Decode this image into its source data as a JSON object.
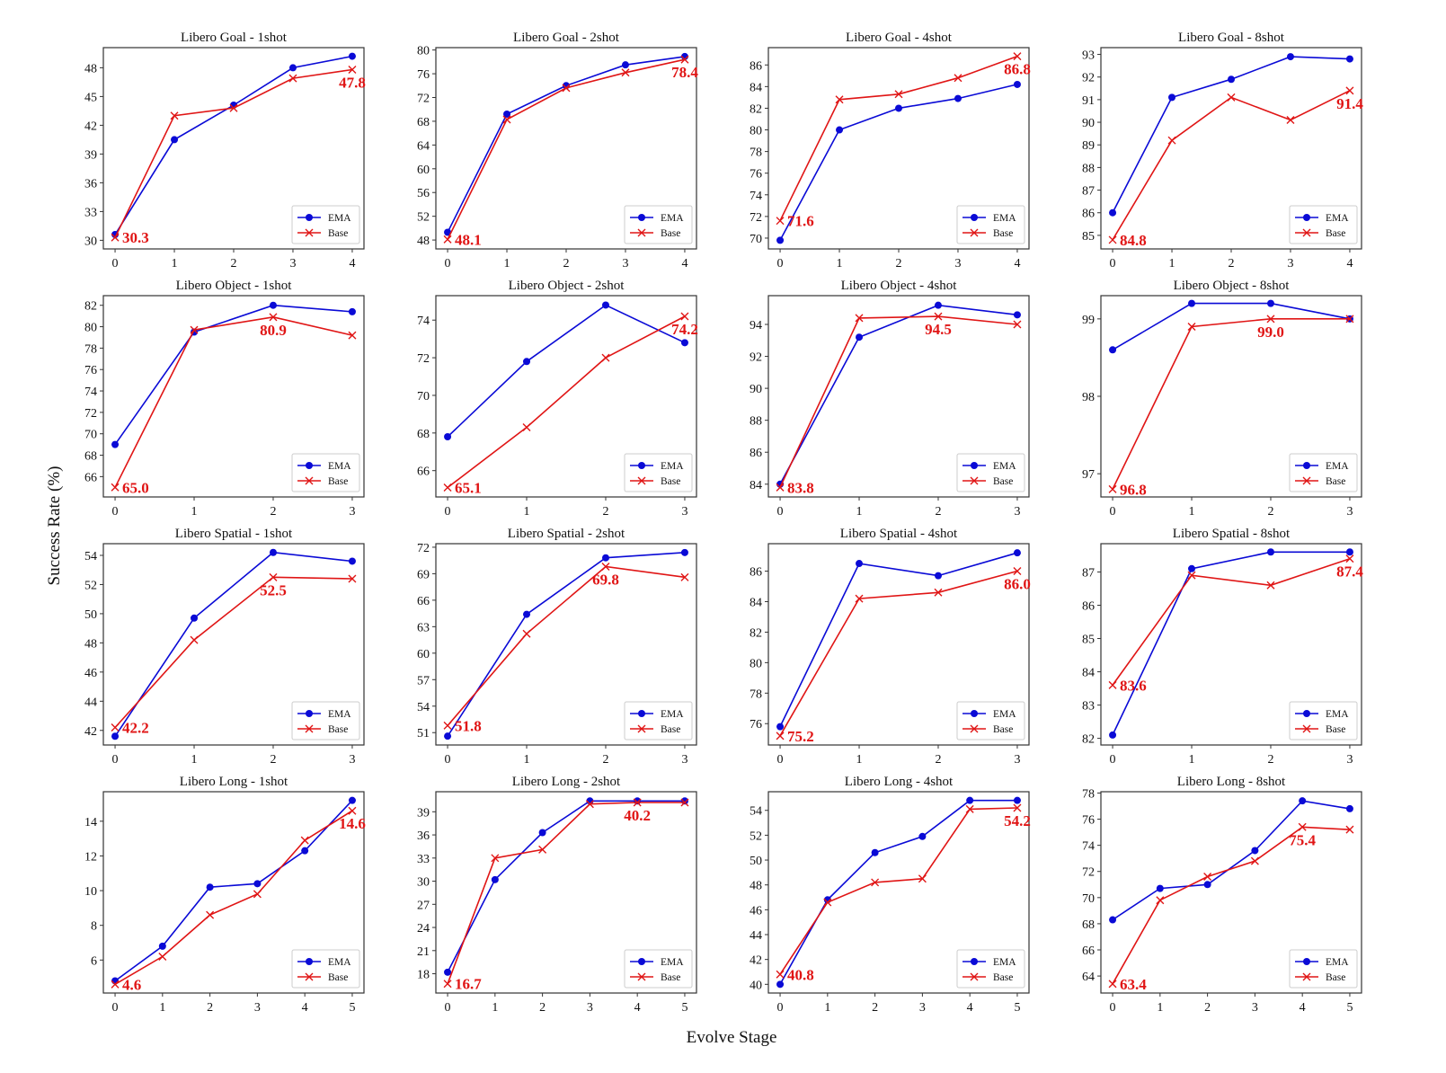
{
  "figure": {
    "xlabel": "Evolve Stage",
    "ylabel": "Success Rate (%)",
    "legend_labels": [
      "EMA",
      "Base"
    ],
    "colors": {
      "EMA": "#0a0ad6",
      "Base": "#e01515",
      "annotation": "#e01515",
      "frame": "#333333"
    }
  },
  "chart_data": [
    {
      "type": "line",
      "title": "Libero Goal - 1shot",
      "x": [
        0,
        1,
        2,
        3,
        4
      ],
      "yticks": [
        30,
        33,
        36,
        39,
        42,
        45,
        48
      ],
      "ylim": [
        29.1,
        50.1
      ],
      "series": [
        {
          "name": "EMA",
          "marker": "circle",
          "values": [
            30.6,
            40.5,
            44.1,
            48.0,
            49.2
          ]
        },
        {
          "name": "Base",
          "marker": "x",
          "values": [
            30.3,
            43.0,
            43.8,
            46.9,
            47.8
          ]
        }
      ],
      "annotations": [
        {
          "text": "30.3",
          "x": 0,
          "y": 30.3,
          "pos": "right"
        },
        {
          "text": "47.8",
          "x": 4,
          "y": 47.8,
          "pos": "below"
        }
      ],
      "legend": "lower-right",
      "xlabel": "",
      "ylabel": ""
    },
    {
      "type": "line",
      "title": "Libero Goal - 2shot",
      "x": [
        0,
        1,
        2,
        3,
        4
      ],
      "yticks": [
        48,
        52,
        56,
        60,
        64,
        68,
        72,
        76,
        80
      ],
      "ylim": [
        46.5,
        80.4
      ],
      "series": [
        {
          "name": "EMA",
          "marker": "circle",
          "values": [
            49.3,
            69.2,
            74.0,
            77.5,
            78.9
          ]
        },
        {
          "name": "Base",
          "marker": "x",
          "values": [
            48.1,
            68.3,
            73.6,
            76.2,
            78.4
          ]
        }
      ],
      "annotations": [
        {
          "text": "48.1",
          "x": 0,
          "y": 48.1,
          "pos": "right"
        },
        {
          "text": "78.4",
          "x": 4,
          "y": 78.4,
          "pos": "below"
        }
      ],
      "legend": "lower-right",
      "xlabel": "",
      "ylabel": ""
    },
    {
      "type": "line",
      "title": "Libero Goal - 4shot",
      "x": [
        0,
        1,
        2,
        3,
        4
      ],
      "yticks": [
        70,
        72,
        74,
        76,
        78,
        80,
        82,
        84,
        86
      ],
      "ylim": [
        69.0,
        87.6
      ],
      "series": [
        {
          "name": "EMA",
          "marker": "circle",
          "values": [
            69.8,
            80.0,
            82.0,
            82.9,
            84.2
          ]
        },
        {
          "name": "Base",
          "marker": "x",
          "values": [
            71.6,
            82.8,
            83.3,
            84.8,
            86.8
          ]
        }
      ],
      "annotations": [
        {
          "text": "71.6",
          "x": 0,
          "y": 71.6,
          "pos": "right"
        },
        {
          "text": "86.8",
          "x": 4,
          "y": 86.8,
          "pos": "below"
        }
      ],
      "legend": "lower-right",
      "xlabel": "",
      "ylabel": ""
    },
    {
      "type": "line",
      "title": "Libero Goal - 8shot",
      "x": [
        0,
        1,
        2,
        3,
        4
      ],
      "yticks": [
        85,
        86,
        87,
        88,
        89,
        90,
        91,
        92,
        93
      ],
      "ylim": [
        84.4,
        93.3
      ],
      "series": [
        {
          "name": "EMA",
          "marker": "circle",
          "values": [
            86.0,
            91.1,
            91.9,
            92.9,
            92.8
          ]
        },
        {
          "name": "Base",
          "marker": "x",
          "values": [
            84.8,
            89.2,
            91.1,
            90.1,
            91.4
          ]
        }
      ],
      "annotations": [
        {
          "text": "84.8",
          "x": 0,
          "y": 84.8,
          "pos": "right"
        },
        {
          "text": "91.4",
          "x": 4,
          "y": 91.4,
          "pos": "below"
        }
      ],
      "legend": "lower-right",
      "xlabel": "",
      "ylabel": ""
    },
    {
      "type": "line",
      "title": "Libero Object - 1shot",
      "x": [
        0,
        1,
        2,
        3
      ],
      "yticks": [
        66,
        68,
        70,
        72,
        74,
        76,
        78,
        80,
        82
      ],
      "ylim": [
        64.1,
        82.9
      ],
      "series": [
        {
          "name": "EMA",
          "marker": "circle",
          "values": [
            69.0,
            79.5,
            82.0,
            81.4
          ]
        },
        {
          "name": "Base",
          "marker": "x",
          "values": [
            65.0,
            79.7,
            80.9,
            79.2
          ]
        }
      ],
      "annotations": [
        {
          "text": "65.0",
          "x": 0,
          "y": 65.0,
          "pos": "right"
        },
        {
          "text": "80.9",
          "x": 2,
          "y": 80.9,
          "pos": "below"
        }
      ],
      "legend": "lower-right",
      "xlabel": "",
      "ylabel": ""
    },
    {
      "type": "line",
      "title": "Libero Object - 2shot",
      "x": [
        0,
        1,
        2,
        3
      ],
      "yticks": [
        66,
        68,
        70,
        72,
        74
      ],
      "ylim": [
        64.6,
        75.3
      ],
      "series": [
        {
          "name": "EMA",
          "marker": "circle",
          "values": [
            67.8,
            71.8,
            74.8,
            72.8
          ]
        },
        {
          "name": "Base",
          "marker": "x",
          "values": [
            65.1,
            68.3,
            72.0,
            74.2
          ]
        }
      ],
      "annotations": [
        {
          "text": "65.1",
          "x": 0,
          "y": 65.1,
          "pos": "right"
        },
        {
          "text": "74.2",
          "x": 3,
          "y": 74.2,
          "pos": "below"
        }
      ],
      "legend": "lower-right",
      "xlabel": "",
      "ylabel": ""
    },
    {
      "type": "line",
      "title": "Libero Object - 4shot",
      "x": [
        0,
        1,
        2,
        3
      ],
      "yticks": [
        84,
        86,
        88,
        90,
        92,
        94
      ],
      "ylim": [
        83.2,
        95.8
      ],
      "series": [
        {
          "name": "EMA",
          "marker": "circle",
          "values": [
            84.0,
            93.2,
            95.2,
            94.6
          ]
        },
        {
          "name": "Base",
          "marker": "x",
          "values": [
            83.8,
            94.4,
            94.5,
            94.0
          ]
        }
      ],
      "annotations": [
        {
          "text": "83.8",
          "x": 0,
          "y": 83.8,
          "pos": "right"
        },
        {
          "text": "94.5",
          "x": 2,
          "y": 94.5,
          "pos": "below"
        }
      ],
      "legend": "lower-right",
      "xlabel": "",
      "ylabel": ""
    },
    {
      "type": "line",
      "title": "Libero Object - 8shot",
      "x": [
        0,
        1,
        2,
        3
      ],
      "yticks": [
        97,
        98,
        99
      ],
      "ylim": [
        96.7,
        99.3
      ],
      "series": [
        {
          "name": "EMA",
          "marker": "circle",
          "values": [
            98.6,
            99.2,
            99.2,
            99.0
          ]
        },
        {
          "name": "Base",
          "marker": "x",
          "values": [
            96.8,
            98.9,
            99.0,
            99.0
          ]
        }
      ],
      "annotations": [
        {
          "text": "96.8",
          "x": 0,
          "y": 96.8,
          "pos": "right"
        },
        {
          "text": "99.0",
          "x": 2,
          "y": 99.0,
          "pos": "below"
        }
      ],
      "legend": "lower-right",
      "xlabel": "",
      "ylabel": ""
    },
    {
      "type": "line",
      "title": "Libero Spatial - 1shot",
      "x": [
        0,
        1,
        2,
        3
      ],
      "yticks": [
        42,
        44,
        46,
        48,
        50,
        52,
        54
      ],
      "ylim": [
        41.0,
        54.8
      ],
      "series": [
        {
          "name": "EMA",
          "marker": "circle",
          "values": [
            41.6,
            49.7,
            54.2,
            53.6
          ]
        },
        {
          "name": "Base",
          "marker": "x",
          "values": [
            42.2,
            48.2,
            52.5,
            52.4
          ]
        }
      ],
      "annotations": [
        {
          "text": "42.2",
          "x": 0,
          "y": 42.2,
          "pos": "right"
        },
        {
          "text": "52.5",
          "x": 2,
          "y": 52.5,
          "pos": "below"
        }
      ],
      "legend": "lower-right",
      "xlabel": "",
      "ylabel": ""
    },
    {
      "type": "line",
      "title": "Libero Spatial - 2shot",
      "x": [
        0,
        1,
        2,
        3
      ],
      "yticks": [
        51,
        54,
        57,
        60,
        63,
        66,
        69,
        72
      ],
      "ylim": [
        49.6,
        72.4
      ],
      "series": [
        {
          "name": "EMA",
          "marker": "circle",
          "values": [
            50.6,
            64.4,
            70.8,
            71.4
          ]
        },
        {
          "name": "Base",
          "marker": "x",
          "values": [
            51.8,
            62.2,
            69.8,
            68.6
          ]
        }
      ],
      "annotations": [
        {
          "text": "51.8",
          "x": 0,
          "y": 51.8,
          "pos": "right"
        },
        {
          "text": "69.8",
          "x": 2,
          "y": 69.8,
          "pos": "below"
        }
      ],
      "legend": "lower-right",
      "xlabel": "",
      "ylabel": ""
    },
    {
      "type": "line",
      "title": "Libero Spatial - 4shot",
      "x": [
        0,
        1,
        2,
        3
      ],
      "yticks": [
        76,
        78,
        80,
        82,
        84,
        86
      ],
      "ylim": [
        74.6,
        87.8
      ],
      "series": [
        {
          "name": "EMA",
          "marker": "circle",
          "values": [
            75.8,
            86.5,
            85.7,
            87.2
          ]
        },
        {
          "name": "Base",
          "marker": "x",
          "values": [
            75.2,
            84.2,
            84.6,
            86.0
          ]
        }
      ],
      "annotations": [
        {
          "text": "75.2",
          "x": 0,
          "y": 75.2,
          "pos": "right"
        },
        {
          "text": "86.0",
          "x": 3,
          "y": 86.0,
          "pos": "below"
        }
      ],
      "legend": "lower-right",
      "xlabel": "",
      "ylabel": ""
    },
    {
      "type": "line",
      "title": "Libero Spatial - 8shot",
      "x": [
        0,
        1,
        2,
        3
      ],
      "yticks": [
        82,
        83,
        84,
        85,
        86,
        87
      ],
      "ylim": [
        81.8,
        87.85
      ],
      "series": [
        {
          "name": "EMA",
          "marker": "circle",
          "values": [
            82.1,
            87.1,
            87.6,
            87.6
          ]
        },
        {
          "name": "Base",
          "marker": "x",
          "values": [
            83.6,
            86.9,
            86.6,
            87.4
          ]
        }
      ],
      "annotations": [
        {
          "text": "83.6",
          "x": 0,
          "y": 83.6,
          "pos": "right"
        },
        {
          "text": "87.4",
          "x": 3,
          "y": 87.4,
          "pos": "below"
        }
      ],
      "legend": "lower-right",
      "xlabel": "",
      "ylabel": ""
    },
    {
      "type": "line",
      "title": "Libero Long - 1shot",
      "x": [
        0,
        1,
        2,
        3,
        4,
        5
      ],
      "yticks": [
        6,
        8,
        10,
        12,
        14
      ],
      "ylim": [
        4.1,
        15.7
      ],
      "series": [
        {
          "name": "EMA",
          "marker": "circle",
          "values": [
            4.8,
            6.8,
            10.2,
            10.4,
            12.3,
            15.2
          ]
        },
        {
          "name": "Base",
          "marker": "x",
          "values": [
            4.6,
            6.2,
            8.6,
            9.8,
            12.9,
            14.6
          ]
        }
      ],
      "annotations": [
        {
          "text": "4.6",
          "x": 0,
          "y": 4.6,
          "pos": "right"
        },
        {
          "text": "14.6",
          "x": 5,
          "y": 14.6,
          "pos": "below"
        }
      ],
      "legend": "lower-right",
      "xlabel": "",
      "ylabel": ""
    },
    {
      "type": "line",
      "title": "Libero Long - 2shot",
      "x": [
        0,
        1,
        2,
        3,
        4,
        5
      ],
      "yticks": [
        18,
        21,
        24,
        27,
        30,
        33,
        36,
        39
      ],
      "ylim": [
        15.5,
        41.6
      ],
      "series": [
        {
          "name": "EMA",
          "marker": "circle",
          "values": [
            18.2,
            30.2,
            36.3,
            40.4,
            40.4,
            40.4
          ]
        },
        {
          "name": "Base",
          "marker": "x",
          "values": [
            16.7,
            33.0,
            34.1,
            40.0,
            40.2,
            40.2
          ]
        }
      ],
      "annotations": [
        {
          "text": "16.7",
          "x": 0,
          "y": 16.7,
          "pos": "right"
        },
        {
          "text": "40.2",
          "x": 4,
          "y": 40.2,
          "pos": "below"
        }
      ],
      "legend": "lower-right",
      "xlabel": "",
      "ylabel": ""
    },
    {
      "type": "line",
      "title": "Libero Long - 4shot",
      "x": [
        0,
        1,
        2,
        3,
        4,
        5
      ],
      "yticks": [
        40,
        42,
        44,
        46,
        48,
        50,
        52,
        54
      ],
      "ylim": [
        39.3,
        55.5
      ],
      "series": [
        {
          "name": "EMA",
          "marker": "circle",
          "values": [
            40.0,
            46.8,
            50.6,
            51.9,
            54.8,
            54.8
          ]
        },
        {
          "name": "Base",
          "marker": "x",
          "values": [
            40.8,
            46.6,
            48.2,
            48.5,
            54.1,
            54.2
          ]
        }
      ],
      "annotations": [
        {
          "text": "40.8",
          "x": 0,
          "y": 40.8,
          "pos": "right"
        },
        {
          "text": "54.2",
          "x": 5,
          "y": 54.2,
          "pos": "below"
        }
      ],
      "legend": "lower-right",
      "xlabel": "",
      "ylabel": ""
    },
    {
      "type": "line",
      "title": "Libero Long - 8shot",
      "x": [
        0,
        1,
        2,
        3,
        4,
        5
      ],
      "yticks": [
        64,
        66,
        68,
        70,
        72,
        74,
        76,
        78
      ],
      "ylim": [
        62.7,
        78.1
      ],
      "series": [
        {
          "name": "EMA",
          "marker": "circle",
          "values": [
            68.3,
            70.7,
            71.0,
            73.6,
            77.4,
            76.8
          ]
        },
        {
          "name": "Base",
          "marker": "x",
          "values": [
            63.4,
            69.8,
            71.6,
            72.8,
            75.4,
            75.2
          ]
        }
      ],
      "annotations": [
        {
          "text": "63.4",
          "x": 0,
          "y": 63.4,
          "pos": "right"
        },
        {
          "text": "75.4",
          "x": 4,
          "y": 75.4,
          "pos": "below"
        }
      ],
      "legend": "lower-right",
      "xlabel": "",
      "ylabel": ""
    }
  ]
}
